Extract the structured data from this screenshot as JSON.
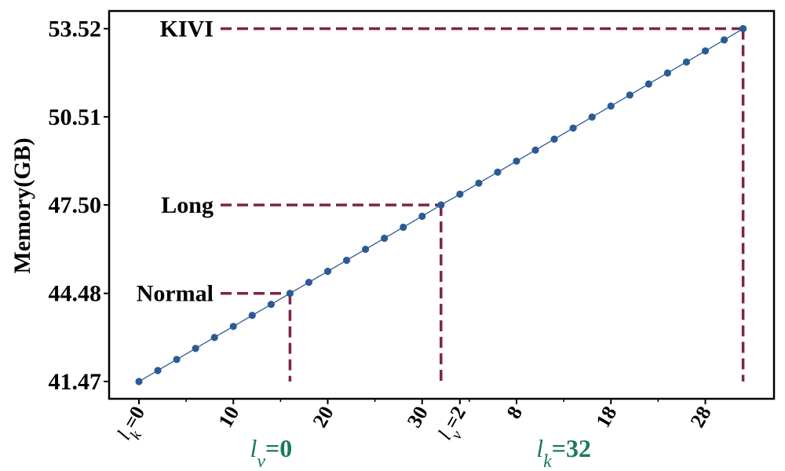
{
  "chart_data": {
    "type": "line",
    "ylabel": "Memory(GB)",
    "xlabel": "",
    "ylim": [
      41.0,
      54.0
    ],
    "yticks": [
      41.47,
      44.48,
      47.5,
      50.51,
      53.52
    ],
    "ytick_labels": [
      "41.47",
      "44.48",
      "47.50",
      "50.51",
      "53.52"
    ],
    "x": [
      0,
      1,
      2,
      3,
      4,
      5,
      6,
      7,
      8,
      9,
      10,
      11,
      12,
      13,
      14,
      15,
      16,
      17,
      18,
      19,
      20,
      21,
      22,
      23,
      24,
      25,
      26,
      27,
      28,
      29,
      30,
      31,
      32
    ],
    "values": [
      41.47,
      41.846,
      42.223,
      42.599,
      42.975,
      43.352,
      43.728,
      44.104,
      44.48,
      44.857,
      45.233,
      45.609,
      45.986,
      46.362,
      46.738,
      47.115,
      47.5,
      47.867,
      48.244,
      48.62,
      48.996,
      49.373,
      49.749,
      50.125,
      50.502,
      50.878,
      51.254,
      51.631,
      52.007,
      52.383,
      52.76,
      53.136,
      53.52
    ],
    "xtick_positions": [
      0,
      5,
      10,
      15,
      17,
      20,
      25,
      30
    ],
    "xtick_labels": [
      "l_k=0",
      "10",
      "20",
      "30",
      "l_v=2",
      "8",
      "18",
      "28"
    ],
    "series_color": "#2b5b94",
    "annotation_color": "#7e2448",
    "group_color": "#1a7a5e",
    "annotations": [
      {
        "label": "Normal",
        "x": 8,
        "y": 44.48
      },
      {
        "label": "Long",
        "x": 16,
        "y": 47.5
      },
      {
        "label": "KIVI",
        "x": 32,
        "y": 53.52
      }
    ],
    "group_labels": [
      {
        "base": "l",
        "sub": "v",
        "rest": "=0",
        "x": 7
      },
      {
        "base": "l",
        "sub": "k",
        "rest": "=32",
        "x": 22.5
      }
    ]
  }
}
